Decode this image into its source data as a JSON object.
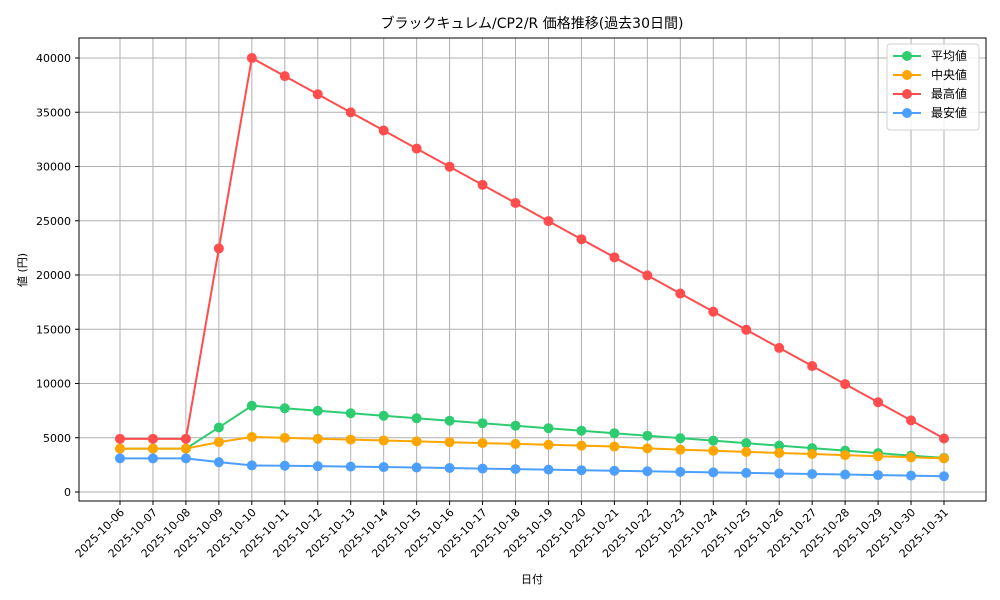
{
  "chart_data": {
    "type": "line",
    "title": "ブラックキュレム/CP2/R 価格推移(過去30日間)",
    "xlabel": "日付",
    "ylabel": "値 (円)",
    "ylim": [
      -400,
      42000
    ],
    "yticks": [
      0,
      5000,
      10000,
      15000,
      20000,
      25000,
      30000,
      35000,
      40000
    ],
    "grid": true,
    "legend_position": "upper right",
    "categories": [
      "2025-10-06",
      "2025-10-07",
      "2025-10-08",
      "2025-10-09",
      "2025-10-10",
      "2025-10-11",
      "2025-10-12",
      "2025-10-13",
      "2025-10-14",
      "2025-10-15",
      "2025-10-16",
      "2025-10-17",
      "2025-10-18",
      "2025-10-19",
      "2025-10-20",
      "2025-10-21",
      "2025-10-22",
      "2025-10-23",
      "2025-10-24",
      "2025-10-25",
      "2025-10-26",
      "2025-10-27",
      "2025-10-28",
      "2025-10-29",
      "2025-10-30",
      "2025-10-31"
    ],
    "series": [
      {
        "name": "平均値",
        "color": "#2ecc71",
        "values": [
          4000,
          4000,
          4000,
          5950,
          7950,
          7720,
          7490,
          7260,
          7030,
          6800,
          6570,
          6340,
          6110,
          5880,
          5650,
          5420,
          5190,
          4960,
          4730,
          4500,
          4270,
          4040,
          3810,
          3580,
          3350,
          3150
        ]
      },
      {
        "name": "中央値",
        "color": "#ffa500",
        "values": [
          4000,
          4000,
          4000,
          4600,
          5070,
          4990,
          4910,
          4830,
          4750,
          4670,
          4590,
          4510,
          4430,
          4350,
          4270,
          4190,
          4020,
          3900,
          3800,
          3700,
          3600,
          3500,
          3400,
          3300,
          3200,
          3100
        ]
      },
      {
        "name": "最高値",
        "color": "#ff4d4d",
        "values": [
          4900,
          4900,
          4900,
          22450,
          40000,
          38330,
          36660,
          34990,
          33320,
          31650,
          29980,
          28310,
          26640,
          24970,
          23300,
          21630,
          19960,
          18290,
          16620,
          14950,
          13280,
          11610,
          9940,
          8270,
          6600,
          4930
        ]
      },
      {
        "name": "最安値",
        "color": "#4d9fff",
        "values": [
          3100,
          3100,
          3100,
          2750,
          2450,
          2420,
          2380,
          2340,
          2300,
          2260,
          2210,
          2160,
          2110,
          2060,
          2010,
          1960,
          1910,
          1860,
          1810,
          1760,
          1710,
          1660,
          1610,
          1560,
          1510,
          1450
        ]
      }
    ]
  }
}
